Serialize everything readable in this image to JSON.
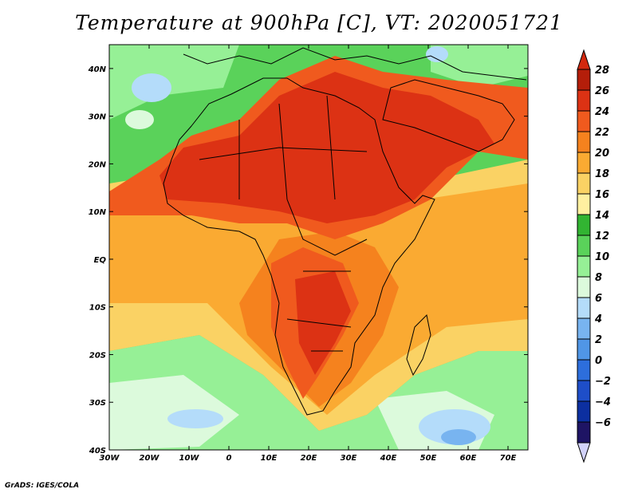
{
  "title": "Temperature at 900hPa [C], VT: 2020051721",
  "credit": "GrADS: IGES/COLA",
  "map": {
    "lon_range": [
      -30,
      75
    ],
    "lat_range": [
      -40,
      45
    ],
    "lon_ticks": [
      {
        "value": -30,
        "label": "30W"
      },
      {
        "value": -20,
        "label": "20W"
      },
      {
        "value": -10,
        "label": "10W"
      },
      {
        "value": 0,
        "label": "0"
      },
      {
        "value": 10,
        "label": "10E"
      },
      {
        "value": 20,
        "label": "20E"
      },
      {
        "value": 30,
        "label": "30E"
      },
      {
        "value": 40,
        "label": "40E"
      },
      {
        "value": 50,
        "label": "50E"
      },
      {
        "value": 60,
        "label": "60E"
      },
      {
        "value": 70,
        "label": "70E"
      }
    ],
    "lat_ticks": [
      {
        "value": 40,
        "label": "40N"
      },
      {
        "value": 30,
        "label": "30N"
      },
      {
        "value": 20,
        "label": "20N"
      },
      {
        "value": 10,
        "label": "10N"
      },
      {
        "value": 0,
        "label": "EQ"
      },
      {
        "value": -10,
        "label": "10S"
      },
      {
        "value": -20,
        "label": "20S"
      },
      {
        "value": -30,
        "label": "30S"
      },
      {
        "value": -40,
        "label": "40S"
      }
    ]
  },
  "colorbar": {
    "levels": [
      28,
      26,
      24,
      22,
      20,
      18,
      16,
      14,
      12,
      10,
      8,
      6,
      4,
      2,
      0,
      -2,
      -4,
      -6
    ],
    "labels": [
      "28",
      "26",
      "24",
      "22",
      "20",
      "18",
      "16",
      "14",
      "12",
      "10",
      "8",
      "6",
      "4",
      "2",
      "0",
      "−2",
      "−4",
      "−6"
    ],
    "colors": [
      "#b41e0a",
      "#dc3214",
      "#f05a1e",
      "#f5821e",
      "#faaa32",
      "#fad264",
      "#fff0a0",
      "#32b432",
      "#5ad25a",
      "#96f096",
      "#dcfadc",
      "#b4dcfa",
      "#78b4f0",
      "#5096e6",
      "#2d6edc",
      "#1e4ec8",
      "#0c2fa0",
      "#1e1464"
    ],
    "over_color": "#d2280f",
    "under_color": "#d2d2fa"
  }
}
